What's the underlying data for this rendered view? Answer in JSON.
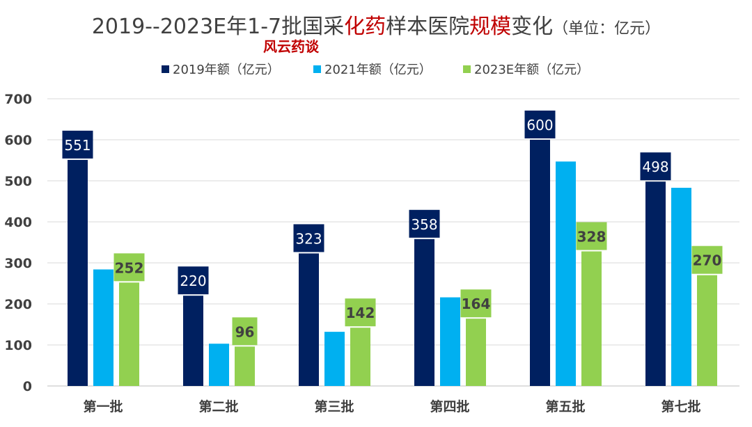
{
  "chart_data": {
    "type": "bar",
    "title": {
      "segments": [
        {
          "text": "2019--2023E年1-7批国采",
          "color": "#404040"
        },
        {
          "text": "化药",
          "color": "#c00000"
        },
        {
          "text": "样本医院",
          "color": "#404040"
        },
        {
          "text": "规模",
          "color": "#c00000"
        },
        {
          "text": "变化",
          "color": "#404040"
        }
      ],
      "unit": "（单位：亿元）"
    },
    "watermark": "风云药谈",
    "categories": [
      "第一批",
      "第二批",
      "第三批",
      "第四批",
      "第五批",
      "第七批"
    ],
    "series": [
      {
        "name": "2019年额（亿元）",
        "color": "#002060",
        "values": [
          551,
          220,
          323,
          358,
          600,
          498
        ],
        "labeled": true,
        "label_bg": "#002060",
        "label_color": "#ffffff",
        "label_bold": false
      },
      {
        "name": "2021年额（亿元）",
        "color": "#00b0f0",
        "values": [
          284,
          103,
          132,
          216,
          547,
          483
        ],
        "labeled": false
      },
      {
        "name": "2023E年额（亿元）",
        "color": "#92d050",
        "values": [
          252,
          96,
          142,
          164,
          328,
          270
        ],
        "labeled": true,
        "label_bg": "#92d050",
        "label_color": "#404040",
        "label_bold": true
      }
    ],
    "y_ticks": [
      0,
      100,
      200,
      300,
      400,
      500,
      600,
      700
    ],
    "ylim": [
      0,
      700
    ],
    "grid": true,
    "legend_position": "top-center"
  }
}
